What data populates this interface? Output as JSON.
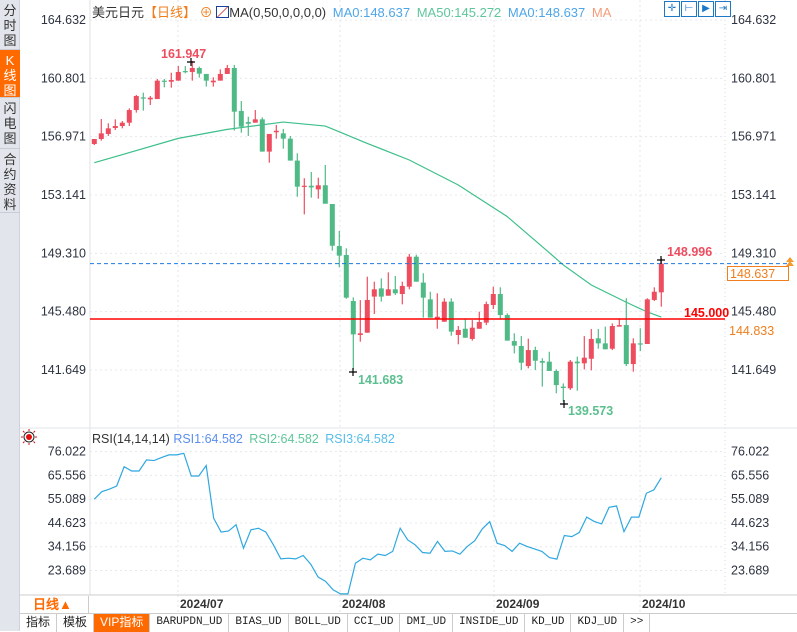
{
  "sidebar": {
    "tabs": [
      {
        "label": "分时图"
      },
      {
        "label": "K线图",
        "active": true
      },
      {
        "label": "闪电图"
      },
      {
        "label": "合约资料"
      }
    ]
  },
  "legend": {
    "symbol": "美元日元",
    "period": "【日线】",
    "zoom_icon": "⊕",
    "ma_label": "MA(0,50,0,0,0,0)",
    "ma0": "MA0:148.637",
    "ma50": "MA50:145.272",
    "ma0b": "MA0:148.637",
    "ma": "MA"
  },
  "toolbar": {
    "icons": [
      "crosshair-icon",
      "zoom-range-icon",
      "play-icon",
      "exit-icon"
    ]
  },
  "rsi_legend": {
    "title": "RSI(14,14,14)",
    "rsi1": "RSI1:64.582",
    "rsi2": "RSI2:64.582",
    "rsi3": "RSI3:64.582"
  },
  "price_axis": {
    "labels": [
      "164.632",
      "160.801",
      "156.971",
      "153.141",
      "149.310",
      "145.480",
      "141.649"
    ],
    "values": [
      164.632,
      160.801,
      156.971,
      153.141,
      149.31,
      145.48,
      141.649
    ]
  },
  "rsi_axis": {
    "labels": [
      "76.022",
      "65.556",
      "55.089",
      "44.623",
      "34.156",
      "23.689"
    ],
    "values": [
      76.022,
      65.556,
      55.089,
      44.623,
      34.156,
      23.689
    ]
  },
  "markers": {
    "high": "161.947",
    "low1": "141.683",
    "low2": "139.573",
    "last_high": "148.996",
    "hline": "145.000",
    "current_price": "148.637",
    "line_price": "144.833"
  },
  "dates": [
    "2024/07",
    "2024/08",
    "2024/09",
    "2024/10"
  ],
  "period_button": "日线▲",
  "bottom_tabs": [
    "指标",
    "模板",
    "VIP指标",
    "BARUPDN_UD",
    "BIAS_UD",
    "BOLL_UD",
    "CCI_UD",
    "DMI_UD",
    "INSIDE_UD",
    "KD_UD",
    "KDJ_UD",
    ">>"
  ],
  "colors": {
    "up": "#ee4d5f",
    "down": "#4fba86",
    "ma50": "#3dbf8a",
    "rsi": "#2fa8e0",
    "accent": "#ff6a00",
    "hline": "#ff0000",
    "current": "#1d79e0"
  },
  "chart_data": {
    "type": "candlestick",
    "title": "美元日元 日线",
    "ylim": [
      138.04,
      165.945
    ],
    "hline": 145.0,
    "current": 148.637,
    "ohlc": [
      [
        156.49,
        156.82,
        156.42,
        156.82
      ],
      [
        156.82,
        158.13,
        156.71,
        157.19
      ],
      [
        157.15,
        157.85,
        157.02,
        157.52
      ],
      [
        157.54,
        158.11,
        157.41,
        157.67
      ],
      [
        157.67,
        158.0,
        157.52,
        157.89
      ],
      [
        157.89,
        158.83,
        157.67,
        158.72
      ],
      [
        158.72,
        159.71,
        158.55,
        159.64
      ],
      [
        159.55,
        159.86,
        158.68,
        159.47
      ],
      [
        159.42,
        159.64,
        159.05,
        159.53
      ],
      [
        159.44,
        160.76,
        159.44,
        160.65
      ],
      [
        160.65,
        160.76,
        160.21,
        160.58
      ],
      [
        160.58,
        161.17,
        160.19,
        160.69
      ],
      [
        160.65,
        161.61,
        160.65,
        161.22
      ],
      [
        161.28,
        161.61,
        161.13,
        161.22
      ],
      [
        161.22,
        161.947,
        160.65,
        161.48
      ],
      [
        161.48,
        161.57,
        160.85,
        161.11
      ],
      [
        161.09,
        161.09,
        160.26,
        160.65
      ],
      [
        160.54,
        160.87,
        160.26,
        160.65
      ],
      [
        160.65,
        161.39,
        160.65,
        161.09
      ],
      [
        161.09,
        161.68,
        161.09,
        161.48
      ],
      [
        161.48,
        161.68,
        157.37,
        158.61
      ],
      [
        158.66,
        159.31,
        157.23,
        157.63
      ],
      [
        157.93,
        158.28,
        157.02,
        157.82
      ],
      [
        157.89,
        158.72,
        157.89,
        158.11
      ],
      [
        158.11,
        158.24,
        155.99,
        155.99
      ],
      [
        155.99,
        157.15,
        155.26,
        157.15
      ],
      [
        157.26,
        157.74,
        156.84,
        157.36
      ],
      [
        157.19,
        157.48,
        156.18,
        156.84
      ],
      [
        156.84,
        157.02,
        155.4,
        155.4
      ],
      [
        155.4,
        155.88,
        153.03,
        153.69
      ],
      [
        153.69,
        154.24,
        151.87,
        153.75
      ],
      [
        153.75,
        154.65,
        152.97,
        153.64
      ],
      [
        153.51,
        154.28,
        152.9,
        153.78
      ],
      [
        153.78,
        155.11,
        152.57,
        152.57
      ],
      [
        152.55,
        152.55,
        149.49,
        149.81
      ],
      [
        149.79,
        150.78,
        148.39,
        149.16
      ],
      [
        149.2,
        149.64,
        146.33,
        146.4
      ],
      [
        146.18,
        146.42,
        141.683,
        143.99
      ],
      [
        143.95,
        146.24,
        143.51,
        144.06
      ],
      [
        144.1,
        147.78,
        144.1,
        146.25
      ],
      [
        146.47,
        147.45,
        145.33,
        146.95
      ],
      [
        147.01,
        147.67,
        146.14,
        146.47
      ],
      [
        146.53,
        148.06,
        146.53,
        146.95
      ],
      [
        146.95,
        147.82,
        146.58,
        146.69
      ],
      [
        146.64,
        147.45,
        145.96,
        147.17
      ],
      [
        147.12,
        149.27,
        146.95,
        149.09
      ],
      [
        149.09,
        149.22,
        147.45,
        147.45
      ],
      [
        147.39,
        148.0,
        145.09,
        146.4
      ],
      [
        146.29,
        146.79,
        145.09,
        145.09
      ],
      [
        145.02,
        146.69,
        144.36,
        145.15
      ],
      [
        144.82,
        146.36,
        144.82,
        146.14
      ],
      [
        146.14,
        146.36,
        143.9,
        144.17
      ],
      [
        143.95,
        144.54,
        143.34,
        144.28
      ],
      [
        144.36,
        145.04,
        143.77,
        143.77
      ],
      [
        143.69,
        144.93,
        143.58,
        144.43
      ],
      [
        144.36,
        145.48,
        144.36,
        144.8
      ],
      [
        144.76,
        146.14,
        144.6,
        145.98
      ],
      [
        145.92,
        147.12,
        145.66,
        146.64
      ],
      [
        146.64,
        147.08,
        145.02,
        145.26
      ],
      [
        145.26,
        145.37,
        143.58,
        143.58
      ],
      [
        143.55,
        144.06,
        142.74,
        143.25
      ],
      [
        143.23,
        143.88,
        141.65,
        142.13
      ],
      [
        141.91,
        143.71,
        141.76,
        142.96
      ],
      [
        142.96,
        143.18,
        141.65,
        142.26
      ],
      [
        142.24,
        142.42,
        140.56,
        142.13
      ],
      [
        142.2,
        142.85,
        141.59,
        141.59
      ],
      [
        141.59,
        141.69,
        140.12,
        140.66
      ],
      [
        140.56,
        140.77,
        139.573,
        140.47
      ],
      [
        140.45,
        142.31,
        140.34,
        142.2
      ],
      [
        142.2,
        142.53,
        140.29,
        142.09
      ],
      [
        142.09,
        143.88,
        141.69,
        142.46
      ],
      [
        142.39,
        144.34,
        141.63,
        143.69
      ],
      [
        143.73,
        144.34,
        143.05,
        143.4
      ],
      [
        143.4,
        144.5,
        143.01,
        143.01
      ],
      [
        143.05,
        144.71,
        142.96,
        144.54
      ],
      [
        144.5,
        145.04,
        144.5,
        144.6
      ],
      [
        144.6,
        146.36,
        141.91,
        142.04
      ],
      [
        142.04,
        143.73,
        141.54,
        143.4
      ],
      [
        143.4,
        144.39,
        142.9,
        143.34
      ],
      [
        143.36,
        146.36,
        143.36,
        146.29
      ],
      [
        146.25,
        147.08,
        146.18,
        146.79
      ],
      [
        146.75,
        148.996,
        145.81,
        148.637
      ]
    ],
    "ma50": [
      [
        1,
        155.26
      ],
      [
        13,
        156.86
      ],
      [
        20,
        157.45
      ],
      [
        28,
        157.93
      ],
      [
        34,
        157.67
      ],
      [
        40,
        156.53
      ],
      [
        46,
        155.44
      ],
      [
        53,
        153.8
      ],
      [
        60,
        151.72
      ],
      [
        65,
        149.75
      ],
      [
        68,
        148.55
      ],
      [
        72,
        147.23
      ],
      [
        77,
        146.1
      ],
      [
        80,
        145.46
      ],
      [
        82,
        145.13
      ]
    ],
    "rsi": {
      "ylim": [
        12.9,
        86.44
      ],
      "values": [
        55.1,
        58.4,
        59.5,
        60.9,
        69.4,
        67.5,
        67.5,
        72.4,
        72.1,
        73.4,
        74.6,
        74.6,
        75.3,
        65.3,
        65.3,
        69.9,
        46.7,
        40.6,
        41.1,
        43.8,
        33.5,
        41.6,
        42.3,
        40.6,
        35.0,
        28.8,
        29.1,
        28.8,
        30.3,
        26.5,
        20.8,
        18.9,
        15.2,
        13.4,
        13.4,
        26.9,
        29.1,
        28.4,
        30.9,
        30.3,
        32.1,
        42.3,
        37.2,
        35.0,
        31.6,
        31.3,
        36.5,
        32.1,
        32.3,
        30.9,
        34.3,
        36.8,
        42.0,
        45.2,
        35.7,
        34.7,
        32.1,
        35.7,
        34.3,
        33.2,
        32.1,
        29.4,
        28.7,
        39.1,
        38.6,
        40.4,
        47.2,
        45.3,
        44.2,
        51.5,
        52.1,
        40.8,
        47.2,
        47.2,
        57.7,
        59.2,
        64.582
      ]
    }
  }
}
